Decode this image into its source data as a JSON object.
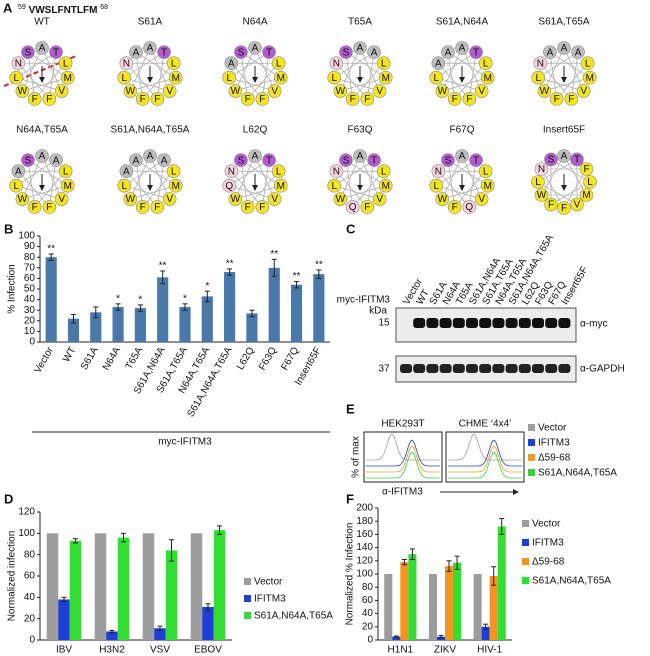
{
  "figure": {
    "panel_labels": [
      "A",
      "C",
      "E"
    ],
    "sequence": {
      "start": "59",
      "residues": "VWSLFNTLFM",
      "end": "68"
    },
    "residue_colors": {
      "A": "#bdbdbd",
      "S": "#b25bd0",
      "T": "#b25bd0",
      "N": "#f9d3de",
      "Q": "#f9d3de",
      "L": "#f5e51c",
      "F": "#f5e51c",
      "V": "#f5e51c",
      "W": "#f5e51c",
      "M": "#f5e51c"
    },
    "helical_wheels": [
      {
        "label": "WT",
        "residues": [
          "A",
          "T",
          "L",
          "M",
          "V",
          "F",
          "F",
          "W",
          "L",
          "N",
          "S"
        ]
      },
      {
        "label": "S61A",
        "residues": [
          "A",
          "T",
          "L",
          "M",
          "V",
          "F",
          "F",
          "W",
          "L",
          "N",
          "A"
        ]
      },
      {
        "label": "N64A",
        "residues": [
          "A",
          "T",
          "L",
          "M",
          "V",
          "F",
          "F",
          "W",
          "L",
          "A",
          "S"
        ]
      },
      {
        "label": "T65A",
        "residues": [
          "A",
          "A",
          "L",
          "M",
          "V",
          "F",
          "F",
          "W",
          "L",
          "N",
          "S"
        ]
      },
      {
        "label": "S61A,N64A",
        "residues": [
          "A",
          "T",
          "L",
          "M",
          "V",
          "F",
          "F",
          "W",
          "L",
          "A",
          "A"
        ]
      },
      {
        "label": "S61A,T65A",
        "residues": [
          "A",
          "A",
          "L",
          "M",
          "V",
          "F",
          "F",
          "W",
          "L",
          "N",
          "A"
        ]
      },
      {
        "label": "N64A,T65A",
        "residues": [
          "A",
          "A",
          "L",
          "M",
          "V",
          "F",
          "F",
          "W",
          "L",
          "A",
          "S"
        ]
      },
      {
        "label": "S61A,N64A,T65A",
        "residues": [
          "A",
          "A",
          "L",
          "M",
          "V",
          "F",
          "F",
          "W",
          "L",
          "A",
          "A"
        ]
      },
      {
        "label": "L62Q",
        "residues": [
          "A",
          "T",
          "L",
          "M",
          "V",
          "F",
          "F",
          "W",
          "Q",
          "N",
          "S"
        ]
      },
      {
        "label": "F63Q",
        "residues": [
          "A",
          "T",
          "L",
          "M",
          "V",
          "F",
          "Q",
          "W",
          "L",
          "N",
          "S"
        ]
      },
      {
        "label": "F67Q",
        "residues": [
          "A",
          "T",
          "L",
          "M",
          "V",
          "Q",
          "F",
          "W",
          "L",
          "N",
          "S"
        ]
      },
      {
        "label": "Insert65F",
        "residues": [
          "A",
          "T",
          "F",
          "L",
          "M",
          "V",
          "F",
          "F",
          "W",
          "L",
          "N",
          "S"
        ]
      }
    ],
    "blot": {
      "row_label": "myc-IFITM3",
      "lanes": [
        "Vector",
        "WT",
        "S61A",
        "N64A",
        "T65A",
        "S61A,N64A",
        "S61A,T65A",
        "N64A,T65A",
        "S61A,N64A,T65A",
        "L62Q",
        "F63Q",
        "F67Q",
        "Insert65F"
      ],
      "unit": "kDa",
      "markers": [
        15,
        37
      ],
      "antibodies": [
        "α-myc",
        "α-GAPDH"
      ]
    },
    "flow": {
      "panels": [
        "HEK293T",
        "CHME ‘4x4’"
      ],
      "y_label": "% of max",
      "x_label": "α-IFITM3",
      "series": [
        {
          "name": "Vector",
          "color": "#9e9e9e"
        },
        {
          "name": "IFITM3",
          "color": "#1f3fd0"
        },
        {
          "name": "Δ59-68",
          "color": "#f39a2e"
        },
        {
          "name": "S61A,N64A,T65A",
          "color": "#3ccf3c"
        }
      ]
    }
  },
  "chart_data": [
    {
      "type": "bar",
      "label": "B",
      "y_label": "% Infection",
      "x_label": "myc-IFITM3",
      "categories": [
        "Vector",
        "WT",
        "S61A",
        "N64A",
        "T65A",
        "S61A,N64A",
        "S61A,T65A",
        "N64A,T65A",
        "S61A,N64A,T65A",
        "L62Q",
        "F63Q",
        "F67Q",
        "Insert65F"
      ],
      "values": [
        80,
        22,
        28,
        33,
        32,
        61,
        33,
        43,
        66,
        27,
        70,
        54,
        64
      ],
      "errors": [
        3,
        4,
        5,
        3,
        3,
        6,
        3,
        5,
        3,
        3,
        8,
        3,
        4
      ],
      "significance": [
        "**",
        null,
        null,
        "*",
        "*",
        "**",
        "*",
        "*",
        "**",
        null,
        "**",
        "**",
        "**"
      ],
      "color": "#4a78a8",
      "ylim": [
        0,
        100
      ],
      "yticks": [
        0,
        10,
        20,
        30,
        40,
        50,
        60,
        70,
        80,
        90,
        100
      ]
    },
    {
      "type": "bar",
      "label": "D",
      "y_label": "Normalized infection",
      "categories": [
        "IBV",
        "H3N2",
        "VSV",
        "EBOV"
      ],
      "series": [
        {
          "name": "Vector",
          "color": "#9c9c9c",
          "values": [
            100,
            100,
            100,
            100
          ]
        },
        {
          "name": "IFITM3",
          "color": "#1d3fd6",
          "values": [
            38,
            8,
            11,
            31
          ],
          "errors": [
            2,
            1,
            2,
            3
          ]
        },
        {
          "name": "S61A,N64A,T65A",
          "color": "#33dd33",
          "values": [
            93,
            96,
            84,
            103
          ],
          "errors": [
            2,
            4,
            10,
            4
          ]
        }
      ],
      "ylim": [
        0,
        120
      ],
      "yticks": [
        0,
        20,
        40,
        60,
        80,
        100,
        120
      ]
    },
    {
      "type": "bar",
      "label": "F",
      "y_label": "Normalized % Infection",
      "categories": [
        "H1N1",
        "ZIKV",
        "HIV-1"
      ],
      "series": [
        {
          "name": "Vector",
          "color": "#9c9c9c",
          "values": [
            100,
            100,
            100
          ]
        },
        {
          "name": "IFITM3",
          "color": "#1d3fd6",
          "values": [
            5,
            5,
            20
          ],
          "errors": [
            1,
            2,
            4
          ]
        },
        {
          "name": "Δ59-68",
          "color": "#f7941d",
          "values": [
            118,
            112,
            97
          ],
          "errors": [
            4,
            8,
            14
          ]
        },
        {
          "name": "S61A,N64A,T65A",
          "color": "#33dd33",
          "values": [
            130,
            117,
            172
          ],
          "errors": [
            8,
            10,
            12
          ]
        }
      ],
      "ylim": [
        0,
        200
      ],
      "yticks": [
        0,
        20,
        40,
        60,
        80,
        100,
        120,
        140,
        160,
        180,
        200
      ]
    }
  ]
}
